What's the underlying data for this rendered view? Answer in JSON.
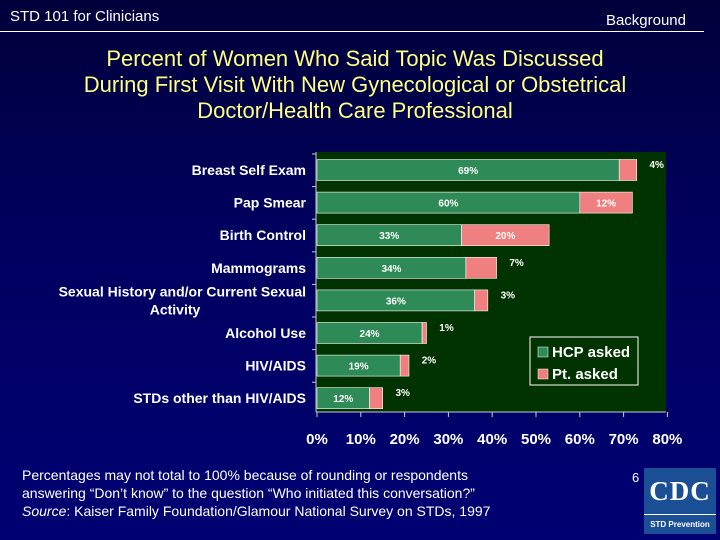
{
  "header": {
    "left": "STD 101 for Clinicians",
    "right": "Background"
  },
  "title_lines": [
    "Percent of Women Who Said Topic Was Discussed",
    "During First Visit With New Gynecological or Obstetrical",
    "Doctor/Health Care Professional"
  ],
  "chart_data": {
    "type": "bar",
    "orientation": "horizontal",
    "stacked": true,
    "categories": [
      [
        "Breast Self Exam"
      ],
      [
        "Pap Smear"
      ],
      [
        "Birth Control"
      ],
      [
        "Mammograms"
      ],
      [
        "Sexual History and/or Current Sexual",
        "Activity"
      ],
      [
        "Alcohol Use"
      ],
      [
        "HIV/AIDS"
      ],
      [
        "STDs other than HIV/AIDS"
      ]
    ],
    "series": [
      {
        "name": "HCP asked",
        "color": "#2e8b57",
        "values": [
          69,
          60,
          33,
          34,
          36,
          24,
          19,
          12
        ],
        "labels": [
          "69%",
          "60%",
          "33%",
          "34%",
          "36%",
          "24%",
          "19%",
          "12%"
        ]
      },
      {
        "name": "Pt. asked",
        "color": "#f08080",
        "values": [
          4,
          12,
          20,
          7,
          3,
          1,
          2,
          3
        ],
        "labels": [
          "4%",
          "12%",
          "20%",
          "7%",
          "3%",
          "1%",
          "2%",
          "3%"
        ]
      }
    ],
    "xlim": [
      0,
      80
    ],
    "xticks": [
      "0%",
      "10%",
      "20%",
      "30%",
      "40%",
      "50%",
      "60%",
      "70%",
      "80%"
    ],
    "legend_position": "bottom-right",
    "plot_background": "#003300"
  },
  "footer": {
    "line1": "Percentages may not total to 100% because of rounding or respondents",
    "line2": "answering “Don’t know” to the question “Who initiated this conversation?”",
    "source_label": "Source",
    "source_text": ":  Kaiser Family Foundation/Glamour National Survey on STDs, 1997"
  },
  "page_number": "6",
  "logo": {
    "name": "CDC",
    "tagline": "STD Prevention"
  }
}
